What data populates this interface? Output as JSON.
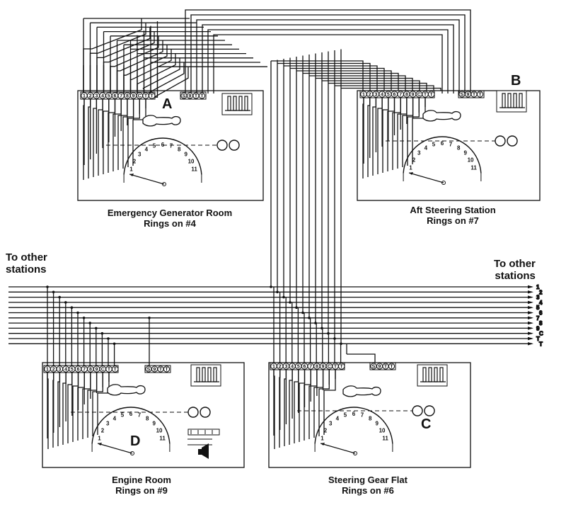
{
  "side_labels": {
    "left": [
      "To other",
      "stations"
    ],
    "right": [
      "To other",
      "stations"
    ]
  },
  "bus_line_labels": [
    "1",
    "2",
    "3",
    "4",
    "5",
    "6",
    "7",
    "8",
    "9",
    "C",
    "T",
    "T"
  ],
  "stations": [
    {
      "id": "A",
      "letter": "A",
      "name": "Emergency Generator Room",
      "rings": "Rings on #4"
    },
    {
      "id": "B",
      "letter": "B",
      "name": "Aft Steering Station",
      "rings": "Rings on #7"
    },
    {
      "id": "D",
      "letter": "D",
      "name": "Engine Room",
      "rings": "Rings on #9"
    },
    {
      "id": "C",
      "letter": "C",
      "name": "Steering Gear Flat",
      "rings": "Rings on #6"
    }
  ],
  "terminal_labels": [
    "1",
    "2",
    "3",
    "4",
    "5",
    "6",
    "7",
    "8",
    "9",
    "C",
    "T",
    "T"
  ],
  "terminal_labels_right": [
    "S",
    "9",
    "T",
    "T"
  ],
  "dial_numbers": [
    "1",
    "2",
    "3",
    "4",
    "5",
    "6",
    "7",
    "8",
    "9",
    "10",
    "11"
  ]
}
